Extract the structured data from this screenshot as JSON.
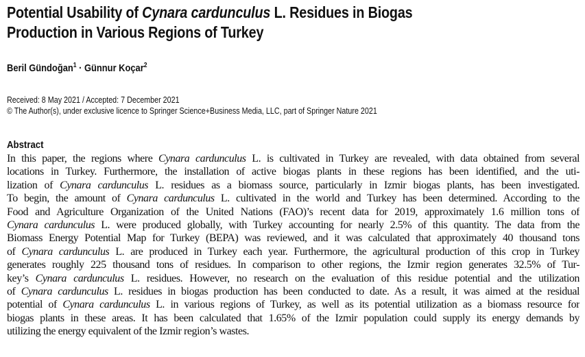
{
  "title": {
    "line1_pre": "Potential Usability of ",
    "line1_italic": "Cynara cardunculus",
    "line1_post": " L. Residues in Biogas",
    "line2": "Production in Various Regions of Turkey"
  },
  "authors": [
    {
      "name": "Beril Gündoğan",
      "affil": "1"
    },
    {
      "name": "Günnur Koçar",
      "affil": "2"
    }
  ],
  "author_separator": " · ",
  "dates": "Received: 8 May 2021 / Accepted: 7 December 2021",
  "copyright": "© The Author(s), under exclusive licence to Springer Science+Business Media, LLC, part of Springer Nature 2021",
  "abstract": {
    "heading": "Abstract",
    "lines": [
      [
        {
          "t": "In this paper, the regions where "
        },
        {
          "t": "Cynara cardunculus",
          "i": true
        },
        {
          "t": " L. is cultivated in Turkey are revealed, with data obtained from several"
        }
      ],
      [
        {
          "t": "locations in Turkey. Furthermore, the installation of active biogas plants in these regions has been identified, and the uti-"
        }
      ],
      [
        {
          "t": "lization of "
        },
        {
          "t": "Cynara cardunculus",
          "i": true
        },
        {
          "t": " L. residues as a biomass source, particularly in Izmir biogas plants, has been investigated."
        }
      ],
      [
        {
          "t": "To begin, the amount of "
        },
        {
          "t": "Cynara cardunculus",
          "i": true
        },
        {
          "t": " L. cultivated in the world and Turkey has been determined. According to the"
        }
      ],
      [
        {
          "t": "Food and Agriculture Organization of the United Nations (FAO)’s recent data for 2019, approximately 1.6 million tons of"
        }
      ],
      [
        {
          "t": "Cynara cardunculus",
          "i": true
        },
        {
          "t": " L. were produced globally, with Turkey accounting for nearly 2.5% of this quantity. The data from the"
        }
      ],
      [
        {
          "t": "Biomass Energy Potential Map for Turkey (BEPA) was reviewed, and it was calculated that approximately 40 thousand tons"
        }
      ],
      [
        {
          "t": "of "
        },
        {
          "t": "Cynara cardunculus",
          "i": true
        },
        {
          "t": " L. are produced in Turkey each year. Furthermore, the agricultural production of this crop in Turkey"
        }
      ],
      [
        {
          "t": "generates roughly 225 thousand tons of residues. In comparison to other regions, the Izmir region generates 32.5% of Tur-"
        }
      ],
      [
        {
          "t": "key’s "
        },
        {
          "t": "Cynara cardunculus",
          "i": true
        },
        {
          "t": " L. residues. However, no research on the evaluation of this residue potential and the utilization"
        }
      ],
      [
        {
          "t": "of "
        },
        {
          "t": "Cynara cardunculus",
          "i": true
        },
        {
          "t": " L. residues in biogas production has been conducted to date. As a result, it was aimed at the residual"
        }
      ],
      [
        {
          "t": "potential of "
        },
        {
          "t": "Cynara cardunculus",
          "i": true
        },
        {
          "t": " L. in various regions of Turkey, as well as its potential utilization as a biomass resource for"
        }
      ],
      [
        {
          "t": "biogas plants in these areas. It has been calculated that 1.65% of the Izmir population could supply its energy demands by"
        }
      ],
      [
        {
          "t": "utilizing the energy equivalent of the Izmir region’s wastes."
        }
      ]
    ]
  }
}
